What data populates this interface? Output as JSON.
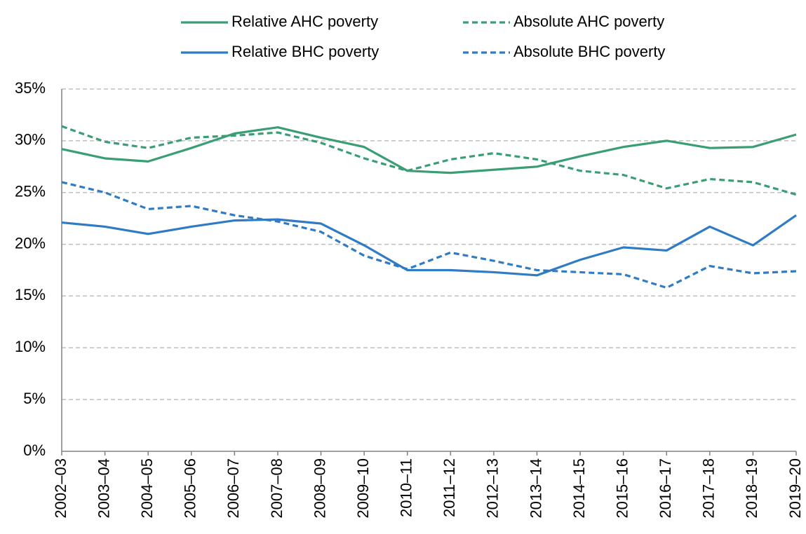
{
  "chart_data": {
    "type": "line",
    "categories": [
      "2002–03",
      "2003–04",
      "2004–05",
      "2005–06",
      "2006–07",
      "2007–08",
      "2008–09",
      "2009–10",
      "2010–11",
      "2011–12",
      "2012–13",
      "2013–14",
      "2014–15",
      "2015–16",
      "2016–17",
      "2017–18",
      "2018–19",
      "2019–20"
    ],
    "series": [
      {
        "name": "Relative AHC poverty",
        "color": "#3a9e74",
        "dashed": false,
        "values": [
          29.2,
          28.3,
          28.0,
          29.3,
          30.7,
          31.3,
          30.3,
          29.4,
          27.1,
          26.9,
          27.2,
          27.5,
          28.5,
          29.4,
          30.0,
          29.3,
          29.4,
          30.6
        ]
      },
      {
        "name": "Absolute AHC poverty",
        "color": "#3a9e74",
        "dashed": true,
        "values": [
          31.4,
          29.9,
          29.3,
          30.3,
          30.5,
          30.8,
          29.8,
          28.3,
          27.1,
          28.2,
          28.8,
          28.2,
          27.1,
          26.7,
          25.4,
          26.3,
          26.0,
          24.8
        ]
      },
      {
        "name": "Relative BHC poverty",
        "color": "#2f7bc4",
        "dashed": false,
        "values": [
          22.1,
          21.7,
          21.0,
          21.7,
          22.3,
          22.4,
          22.0,
          19.9,
          17.5,
          17.5,
          17.3,
          17.0,
          18.5,
          19.7,
          19.4,
          21.7,
          19.9,
          22.8
        ]
      },
      {
        "name": "Absolute BHC poverty",
        "color": "#2f7bc4",
        "dashed": true,
        "values": [
          26.0,
          25.0,
          23.4,
          23.7,
          22.8,
          22.2,
          21.2,
          18.9,
          17.6,
          19.2,
          18.4,
          17.5,
          17.3,
          17.1,
          15.8,
          17.9,
          17.2,
          17.4
        ]
      }
    ],
    "ylim": [
      0,
      35
    ],
    "yticks": [
      {
        "value": 0,
        "label": "0%"
      },
      {
        "value": 5,
        "label": "5%"
      },
      {
        "value": 10,
        "label": "10%"
      },
      {
        "value": 15,
        "label": "15%"
      },
      {
        "value": 20,
        "label": "20%"
      },
      {
        "value": 25,
        "label": "25%"
      },
      {
        "value": 30,
        "label": "30%"
      },
      {
        "value": 35,
        "label": "35%"
      }
    ],
    "grid": true,
    "legend": "top"
  }
}
